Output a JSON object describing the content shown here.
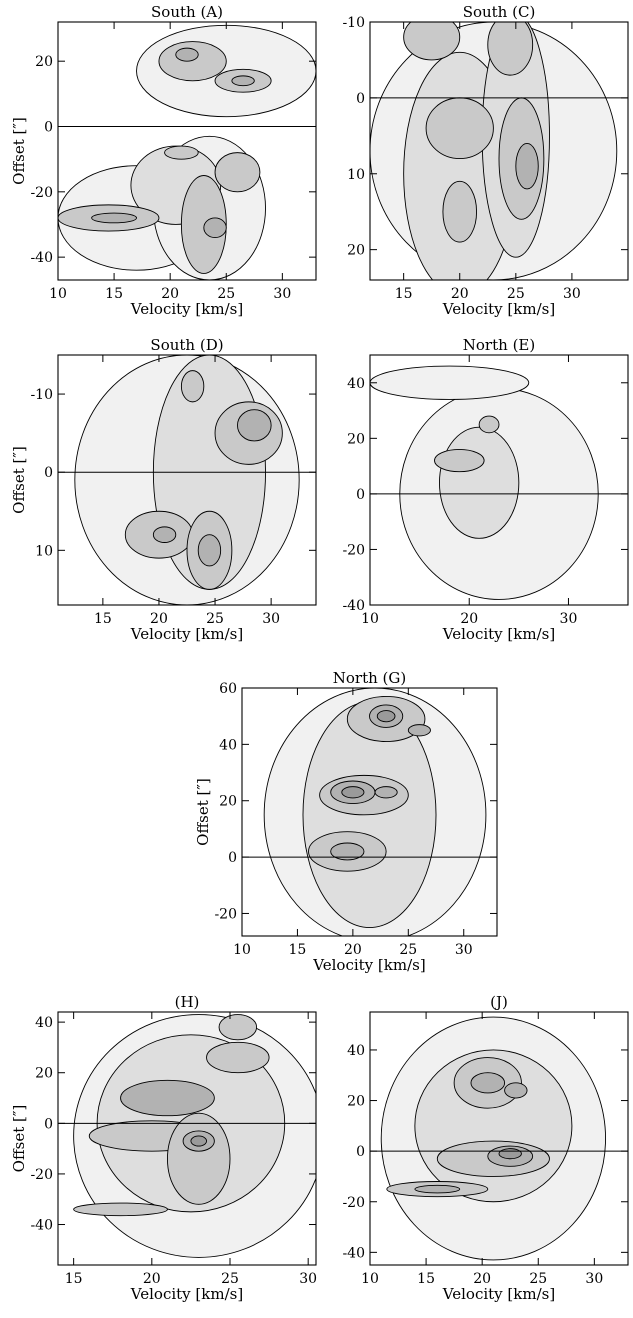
{
  "figure": {
    "fill_levels": [
      "#f1f1f1",
      "#dedede",
      "#c9c9c9",
      "#b2b2b2",
      "#9a9a9a"
    ],
    "panels": [
      {
        "id": "A",
        "title": "South (A)",
        "xlabel": "Velocity [km/s]",
        "ylabel": "Offset [″]",
        "xlim": [
          10,
          33
        ],
        "ylim": [
          32,
          -47
        ],
        "xticks": [
          "10",
          "15",
          "20",
          "25",
          "30"
        ],
        "yticks": [
          "-40",
          "-20",
          "0",
          "20"
        ],
        "zero_line": 0,
        "blobs": [
          {
            "x": 14.5,
            "y": -28,
            "rx": 4.5,
            "ry": 4,
            "level": 2
          },
          {
            "x": 15,
            "y": -28,
            "rx": 2,
            "ry": 1.5,
            "level": 3
          },
          {
            "x": 20.5,
            "y": -18,
            "rx": 4,
            "ry": 12,
            "level": 1
          },
          {
            "x": 23,
            "y": -30,
            "rx": 2,
            "ry": 15,
            "level": 2
          },
          {
            "x": 24,
            "y": -31,
            "rx": 1,
            "ry": 3,
            "level": 3
          },
          {
            "x": 21,
            "y": -8,
            "rx": 1.5,
            "ry": 2,
            "level": 2
          },
          {
            "x": 26,
            "y": -14,
            "rx": 2,
            "ry": 6,
            "level": 2
          },
          {
            "x": 22,
            "y": 20,
            "rx": 3,
            "ry": 6,
            "level": 2
          },
          {
            "x": 21.5,
            "y": 22,
            "rx": 1,
            "ry": 2,
            "level": 3
          },
          {
            "x": 26.5,
            "y": 14,
            "rx": 2.5,
            "ry": 3.5,
            "level": 2
          },
          {
            "x": 26.5,
            "y": 14,
            "rx": 1,
            "ry": 1.5,
            "level": 3
          }
        ],
        "envelope": [
          {
            "x": 17,
            "y": -28,
            "rx": 7,
            "ry": 16,
            "level": 0
          },
          {
            "x": 23.5,
            "y": -25,
            "rx": 5,
            "ry": 22,
            "level": 0
          },
          {
            "x": 25,
            "y": 17,
            "rx": 8,
            "ry": 14,
            "level": 0
          }
        ]
      },
      {
        "id": "C",
        "title": "South (C)",
        "xlabel": "Velocity [km/s]",
        "ylabel": "",
        "xlim": [
          12,
          35
        ],
        "ylim": [
          -10,
          24
        ],
        "xticks": [
          "15",
          "20",
          "25",
          "30"
        ],
        "yticks": [
          "20",
          "10",
          "0",
          "-10"
        ],
        "zero_line": 0,
        "blobs": [
          {
            "x": 20,
            "y": 10,
            "rx": 5,
            "ry": 16,
            "level": 1
          },
          {
            "x": 20,
            "y": 4,
            "rx": 3,
            "ry": 4,
            "level": 2
          },
          {
            "x": 20,
            "y": 15,
            "rx": 1.5,
            "ry": 4,
            "level": 2
          },
          {
            "x": 25,
            "y": 5,
            "rx": 3,
            "ry": 16,
            "level": 1
          },
          {
            "x": 25.5,
            "y": 8,
            "rx": 2,
            "ry": 8,
            "level": 2
          },
          {
            "x": 26,
            "y": 9,
            "rx": 1,
            "ry": 3,
            "level": 3
          },
          {
            "x": 17.5,
            "y": -8,
            "rx": 2.5,
            "ry": 3,
            "level": 2
          },
          {
            "x": 24.5,
            "y": -7,
            "rx": 2,
            "ry": 4,
            "level": 2
          }
        ],
        "envelope": [
          {
            "x": 23,
            "y": 7,
            "rx": 11,
            "ry": 17,
            "level": 0
          }
        ]
      },
      {
        "id": "D",
        "title": "South (D)",
        "xlabel": "Velocity [km/s]",
        "ylabel": "Offset [″]",
        "xlim": [
          11,
          34
        ],
        "ylim": [
          -15,
          17
        ],
        "xticks": [
          "15",
          "20",
          "25",
          "30"
        ],
        "yticks": [
          "10",
          "0",
          "-10"
        ],
        "zero_line": 0,
        "blobs": [
          {
            "x": 20,
            "y": 8,
            "rx": 3,
            "ry": 3,
            "level": 2
          },
          {
            "x": 20.5,
            "y": 8,
            "rx": 1,
            "ry": 1,
            "level": 3
          },
          {
            "x": 24.5,
            "y": 10,
            "rx": 2,
            "ry": 5,
            "level": 2
          },
          {
            "x": 24.5,
            "y": 10,
            "rx": 1,
            "ry": 2,
            "level": 3
          },
          {
            "x": 28,
            "y": -5,
            "rx": 3,
            "ry": 4,
            "level": 2
          },
          {
            "x": 28.5,
            "y": -6,
            "rx": 1.5,
            "ry": 2,
            "level": 3
          },
          {
            "x": 23,
            "y": -11,
            "rx": 1,
            "ry": 2,
            "level": 2
          }
        ],
        "envelope": [
          {
            "x": 22.5,
            "y": 1,
            "rx": 10,
            "ry": 16,
            "level": 0
          },
          {
            "x": 24.5,
            "y": 0,
            "rx": 5,
            "ry": 15,
            "level": 1
          }
        ]
      },
      {
        "id": "E",
        "title": "North (E)",
        "xlabel": "Velocity [km/s]",
        "ylabel": "",
        "xlim": [
          10,
          36
        ],
        "ylim": [
          50,
          -40
        ],
        "xticks": [
          "10",
          "20",
          "30"
        ],
        "yticks": [
          "-40",
          "-20",
          "0",
          "20",
          "40"
        ],
        "zero_line": 0,
        "blobs": [
          {
            "x": 19,
            "y": 12,
            "rx": 2.5,
            "ry": 4,
            "level": 2
          },
          {
            "x": 21,
            "y": 4,
            "rx": 4,
            "ry": 20,
            "level": 1
          },
          {
            "x": 22,
            "y": 25,
            "rx": 1,
            "ry": 3,
            "level": 2
          }
        ],
        "envelope": [
          {
            "x": 23,
            "y": 0,
            "rx": 10,
            "ry": 38,
            "level": 0
          },
          {
            "x": 18,
            "y": 40,
            "rx": 8,
            "ry": 6,
            "level": 0
          }
        ]
      },
      {
        "id": "G",
        "title": "North (G)",
        "xlabel": "Velocity [km/s]",
        "ylabel": "Offset [″]",
        "xlim": [
          10,
          33
        ],
        "ylim": [
          60,
          -28
        ],
        "xticks": [
          "10",
          "15",
          "20",
          "25",
          "30"
        ],
        "yticks": [
          "-20",
          "0",
          "20",
          "40",
          "60"
        ],
        "zero_line": 0,
        "blobs": [
          {
            "x": 19.5,
            "y": 2,
            "rx": 3.5,
            "ry": 7,
            "level": 2
          },
          {
            "x": 19.5,
            "y": 2,
            "rx": 1.5,
            "ry": 3,
            "level": 3
          },
          {
            "x": 21,
            "y": 22,
            "rx": 4,
            "ry": 7,
            "level": 2
          },
          {
            "x": 20,
            "y": 23,
            "rx": 2,
            "ry": 4,
            "level": 3
          },
          {
            "x": 20,
            "y": 23,
            "rx": 1,
            "ry": 2,
            "level": 4
          },
          {
            "x": 23,
            "y": 23,
            "rx": 1,
            "ry": 2,
            "level": 3
          },
          {
            "x": 23,
            "y": 49,
            "rx": 3.5,
            "ry": 8,
            "level": 2
          },
          {
            "x": 23,
            "y": 50,
            "rx": 1.5,
            "ry": 4,
            "level": 3
          },
          {
            "x": 23,
            "y": 50,
            "rx": 0.8,
            "ry": 2,
            "level": 4
          },
          {
            "x": 26,
            "y": 45,
            "rx": 1,
            "ry": 2,
            "level": 3
          }
        ],
        "envelope": [
          {
            "x": 22,
            "y": 15,
            "rx": 10,
            "ry": 45,
            "level": 0
          },
          {
            "x": 21.5,
            "y": 15,
            "rx": 6,
            "ry": 40,
            "level": 1
          }
        ]
      },
      {
        "id": "H",
        "title": "(H)",
        "xlabel": "Velocity [km/s]",
        "ylabel": "Offset [″]",
        "xlim": [
          14,
          30.5
        ],
        "ylim": [
          44,
          -56
        ],
        "xticks": [
          "15",
          "20",
          "25",
          "30"
        ],
        "yticks": [
          "-40",
          "-20",
          "0",
          "20",
          "40"
        ],
        "zero_line": 0,
        "blobs": [
          {
            "x": 18,
            "y": -34,
            "rx": 3,
            "ry": 2.5,
            "level": 2
          },
          {
            "x": 20,
            "y": -5,
            "rx": 4,
            "ry": 6,
            "level": 2
          },
          {
            "x": 21,
            "y": 10,
            "rx": 3,
            "ry": 7,
            "level": 3
          },
          {
            "x": 23,
            "y": -14,
            "rx": 2,
            "ry": 18,
            "level": 2
          },
          {
            "x": 23,
            "y": -7,
            "rx": 1,
            "ry": 4,
            "level": 3
          },
          {
            "x": 23,
            "y": -7,
            "rx": 0.5,
            "ry": 2,
            "level": 4
          },
          {
            "x": 25.5,
            "y": 26,
            "rx": 2,
            "ry": 6,
            "level": 2
          },
          {
            "x": 25.5,
            "y": 38,
            "rx": 1.2,
            "ry": 5,
            "level": 2
          }
        ],
        "envelope": [
          {
            "x": 23,
            "y": -5,
            "rx": 8,
            "ry": 48,
            "level": 0
          },
          {
            "x": 22.5,
            "y": 0,
            "rx": 6,
            "ry": 35,
            "level": 1
          }
        ]
      },
      {
        "id": "J",
        "title": "(J)",
        "xlabel": "Velocity [km/s]",
        "ylabel": "",
        "xlim": [
          10,
          33
        ],
        "ylim": [
          55,
          -45
        ],
        "xticks": [
          "10",
          "15",
          "20",
          "25",
          "30"
        ],
        "yticks": [
          "-40",
          "-20",
          "0",
          "20",
          "40"
        ],
        "zero_line": 0,
        "blobs": [
          {
            "x": 16,
            "y": -15,
            "rx": 4.5,
            "ry": 3,
            "level": 2
          },
          {
            "x": 16,
            "y": -15,
            "rx": 2,
            "ry": 1.5,
            "level": 3
          },
          {
            "x": 21,
            "y": -3,
            "rx": 5,
            "ry": 7,
            "level": 2
          },
          {
            "x": 22.5,
            "y": -2,
            "rx": 2,
            "ry": 4,
            "level": 3
          },
          {
            "x": 22.5,
            "y": -1,
            "rx": 1,
            "ry": 2,
            "level": 4
          },
          {
            "x": 20.5,
            "y": 27,
            "rx": 3,
            "ry": 10,
            "level": 2
          },
          {
            "x": 20.5,
            "y": 27,
            "rx": 1.5,
            "ry": 4,
            "level": 3
          },
          {
            "x": 23,
            "y": 24,
            "rx": 1,
            "ry": 3,
            "level": 3
          }
        ],
        "envelope": [
          {
            "x": 21,
            "y": 5,
            "rx": 10,
            "ry": 48,
            "level": 0
          },
          {
            "x": 21,
            "y": 10,
            "rx": 7,
            "ry": 30,
            "level": 1
          }
        ]
      }
    ]
  }
}
